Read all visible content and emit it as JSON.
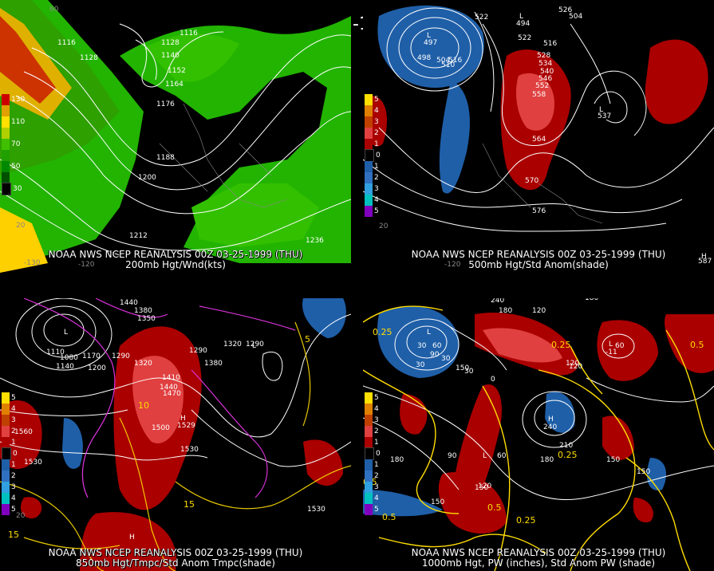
{
  "header": {
    "title": "00Z 03-25-1999 (THU)"
  },
  "colors": {
    "background": "#000000",
    "warm_anom": "#cc0000",
    "cold_anom": "#1f5fa8",
    "wind_green": "#22b400",
    "contour_white": "#ffffff",
    "contour_yellow": "#ffdd00",
    "contour_magenta": "#dd33dd"
  },
  "panels": [
    {
      "id": "p1",
      "caption_line1": "NOAA NWS NCEP REANALYSIS 00Z 03-25-1999 (THU)",
      "caption_line2": "200mb Hgt/Wnd(kts)",
      "legend": [
        {
          "label": "130",
          "color": "#cc0000"
        },
        {
          "label": "",
          "color": "#e0a000"
        },
        {
          "label": "110",
          "color": "#ffe000"
        },
        {
          "label": "",
          "color": "#b0d000"
        },
        {
          "label": "70",
          "color": "#40c000"
        },
        {
          "label": "",
          "color": "#20a000"
        },
        {
          "label": "50",
          "color": "#008800"
        },
        {
          "label": "",
          "color": "#005000"
        },
        {
          "label": "30",
          "color": "#000000"
        }
      ],
      "contour_labels": [
        "1116",
        "1128",
        "1128",
        "1140",
        "1116",
        "1152",
        "1164",
        "1176",
        "1188",
        "1200",
        "1212",
        "1236"
      ],
      "lon_labels": [
        "-130",
        "-120"
      ],
      "lat_labels": [
        "60",
        "20"
      ]
    },
    {
      "id": "p2",
      "caption_line1": "NOAA NWS NCEP REANALYSIS 00Z 03-25-1999 (THU)",
      "caption_line2": "500mb Hgt/Std Anom(shade)",
      "legend": [
        {
          "label": "5",
          "color": "#ffe000"
        },
        {
          "label": "4",
          "color": "#e08000"
        },
        {
          "label": "3",
          "color": "#c04000"
        },
        {
          "label": "2",
          "color": "#e04040"
        },
        {
          "label": "1",
          "color": "#aa0000"
        },
        {
          "label": "0",
          "color": "#000000"
        },
        {
          "label": "1",
          "color": "#1f5fa8"
        },
        {
          "label": "2",
          "color": "#3070c0"
        },
        {
          "label": "3",
          "color": "#30a0e0"
        },
        {
          "label": "4",
          "color": "#00c0c0"
        },
        {
          "label": "5",
          "color": "#8000c0"
        }
      ],
      "contour_labels": [
        "522",
        "516",
        "522",
        "528",
        "534",
        "540",
        "546",
        "552",
        "558",
        "564",
        "570",
        "576",
        "498",
        "504",
        "516",
        "510"
      ],
      "pressure_labels": [
        "L",
        "L",
        "L",
        "H"
      ],
      "center_values": [
        "497",
        "494",
        "537",
        "587",
        "526",
        "504"
      ],
      "lon_labels": [
        "-120"
      ],
      "lat_labels": [
        "20"
      ]
    },
    {
      "id": "p3",
      "caption_line1": "NOAA NWS NCEP REANALYSIS 00Z 03-25-1999 (THU)",
      "caption_line2": "850mb Hgt/Tmpc/Std Anom Tmpc(shade)",
      "legend": [
        {
          "label": "5",
          "color": "#ffe000"
        },
        {
          "label": "4",
          "color": "#e08000"
        },
        {
          "label": "3",
          "color": "#c04000"
        },
        {
          "label": "2",
          "color": "#e04040"
        },
        {
          "label": "1",
          "color": "#aa0000"
        },
        {
          "label": "0",
          "color": "#000000"
        },
        {
          "label": "1",
          "color": "#1f5fa8"
        },
        {
          "label": "2",
          "color": "#3070c0"
        },
        {
          "label": "3",
          "color": "#30a0e0"
        },
        {
          "label": "4",
          "color": "#00c0c0"
        },
        {
          "label": "5",
          "color": "#8000c0"
        }
      ],
      "contour_labels": [
        "1440",
        "1380",
        "1350",
        "1110",
        "1080",
        "1170",
        "1140",
        "1200",
        "1290",
        "1320",
        "1410",
        "1440",
        "1470",
        "1290",
        "1320",
        "1290",
        "1380",
        "1500",
        "1530",
        "1560",
        "1530",
        "1530"
      ],
      "temp_labels": [
        "10",
        "5",
        "15",
        "15"
      ],
      "pressure_labels": [
        "L",
        "H",
        "L",
        "H"
      ],
      "center_values": [
        "1529"
      ],
      "lat_labels": [
        "20"
      ]
    },
    {
      "id": "p4",
      "caption_line1": "NOAA NWS NCEP REANALYSIS 00Z 03-25-1999 (THU)",
      "caption_line2": "1000mb Hgt, PW (inches), Std Anom PW (shade)",
      "legend": [
        {
          "label": "5",
          "color": "#ffe000"
        },
        {
          "label": "4",
          "color": "#e08000"
        },
        {
          "label": "3",
          "color": "#c04000"
        },
        {
          "label": "2",
          "color": "#e04040"
        },
        {
          "label": "1",
          "color": "#aa0000"
        },
        {
          "label": "0",
          "color": "#000000"
        },
        {
          "label": "1",
          "color": "#1f5fa8"
        },
        {
          "label": "2",
          "color": "#3070c0"
        },
        {
          "label": "3",
          "color": "#30a0e0"
        },
        {
          "label": "4",
          "color": "#00c0c0"
        },
        {
          "label": "5",
          "color": "#8000c0"
        }
      ],
      "contour_labels": [
        "240",
        "180",
        "120",
        "180",
        "120",
        "0",
        "90",
        "30",
        "60",
        "30",
        "30",
        "60",
        "90",
        "180",
        "150",
        "210",
        "180",
        "150",
        "120",
        "150",
        "150",
        "60",
        "120",
        "150",
        "30"
      ],
      "pw_labels": [
        "0.25",
        "0.25",
        "0.5",
        "0.25",
        "0.5",
        "0.25",
        "0.5",
        "0.5"
      ],
      "pressure_labels": [
        "L",
        "L",
        "H",
        "L"
      ],
      "center_values": [
        "240",
        "-11"
      ]
    }
  ]
}
